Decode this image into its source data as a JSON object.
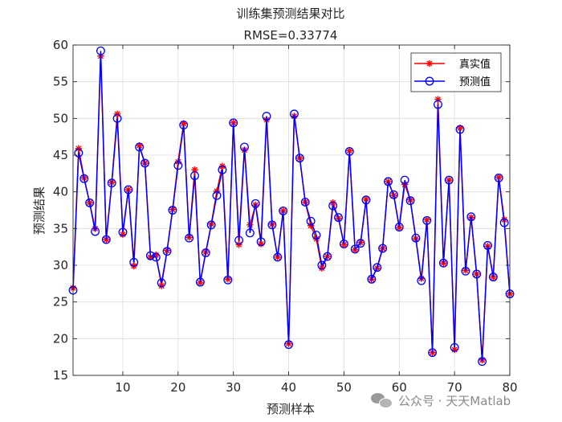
{
  "chart_data": {
    "type": "line",
    "title": "训练集预测结果对比",
    "subtitle": "RMSE=0.33774",
    "xlabel": "预测样本",
    "ylabel": "预测结果",
    "xlim": [
      1,
      80
    ],
    "ylim": [
      15,
      60
    ],
    "xticks": [
      10,
      20,
      30,
      40,
      50,
      60,
      70,
      80
    ],
    "yticks": [
      15,
      20,
      25,
      30,
      35,
      40,
      45,
      50,
      55,
      60
    ],
    "grid": true,
    "legend_position": "top-right",
    "x": [
      1,
      2,
      3,
      4,
      5,
      6,
      7,
      8,
      9,
      10,
      11,
      12,
      13,
      14,
      15,
      16,
      17,
      18,
      19,
      20,
      21,
      22,
      23,
      24,
      25,
      26,
      27,
      28,
      29,
      30,
      31,
      32,
      33,
      34,
      35,
      36,
      37,
      38,
      39,
      40,
      41,
      42,
      43,
      44,
      45,
      46,
      47,
      48,
      49,
      50,
      51,
      52,
      53,
      54,
      55,
      56,
      57,
      58,
      59,
      60,
      61,
      62,
      63,
      64,
      65,
      66,
      67,
      68,
      69,
      70,
      71,
      72,
      73,
      74,
      75,
      76,
      77,
      78,
      79,
      80
    ],
    "series": [
      {
        "name": "真实值",
        "color": "#ff0000",
        "marker": "asterisk",
        "values": [
          26.9,
          45.9,
          41.9,
          38.5,
          35.0,
          58.5,
          33.5,
          41.3,
          50.6,
          34.2,
          40.3,
          29.9,
          46.3,
          43.9,
          31.1,
          31.4,
          27.2,
          32.0,
          37.6,
          44.1,
          49.3,
          33.8,
          43.0,
          27.6,
          31.8,
          35.6,
          40.1,
          43.5,
          28.1,
          49.4,
          32.8,
          45.7,
          35.5,
          38.2,
          32.9,
          49.8,
          35.6,
          31.1,
          37.4,
          19.3,
          50.3,
          44.6,
          38.6,
          35.4,
          33.6,
          29.6,
          31.2,
          38.5,
          36.4,
          32.8,
          45.6,
          32.1,
          33.1,
          39.0,
          28.1,
          29.6,
          32.3,
          41.4,
          39.5,
          35.1,
          41.0,
          38.9,
          33.6,
          28.2,
          36.2,
          18.1,
          52.6,
          30.3,
          41.6,
          18.5,
          48.7,
          29.3,
          36.5,
          28.8,
          17.1,
          32.6,
          28.4,
          42.0,
          36.2,
          26.1
        ]
      },
      {
        "name": "预测值",
        "color": "#0000ff",
        "marker": "circle",
        "values": [
          26.6,
          45.3,
          41.8,
          38.5,
          34.6,
          59.2,
          33.5,
          41.2,
          50.0,
          34.5,
          40.3,
          30.4,
          46.1,
          43.9,
          31.3,
          31.1,
          27.6,
          31.9,
          37.5,
          43.6,
          49.1,
          33.7,
          42.2,
          27.7,
          31.7,
          35.5,
          39.5,
          43.0,
          28.0,
          49.4,
          33.4,
          46.1,
          34.4,
          38.4,
          33.2,
          50.3,
          35.5,
          31.1,
          37.4,
          19.2,
          50.6,
          44.6,
          38.6,
          36.0,
          34.1,
          30.0,
          31.2,
          38.1,
          36.5,
          32.9,
          45.5,
          32.2,
          33.0,
          38.9,
          28.1,
          29.7,
          32.3,
          41.4,
          39.6,
          35.2,
          41.6,
          38.8,
          33.7,
          27.9,
          36.1,
          18.1,
          51.9,
          30.3,
          41.6,
          18.8,
          48.5,
          29.2,
          36.6,
          28.8,
          16.9,
          32.7,
          28.4,
          41.9,
          35.8,
          26.1
        ]
      }
    ]
  },
  "watermark": {
    "text": "公众号 · 天天Matlab",
    "icon": "wechat-logo-icon"
  }
}
